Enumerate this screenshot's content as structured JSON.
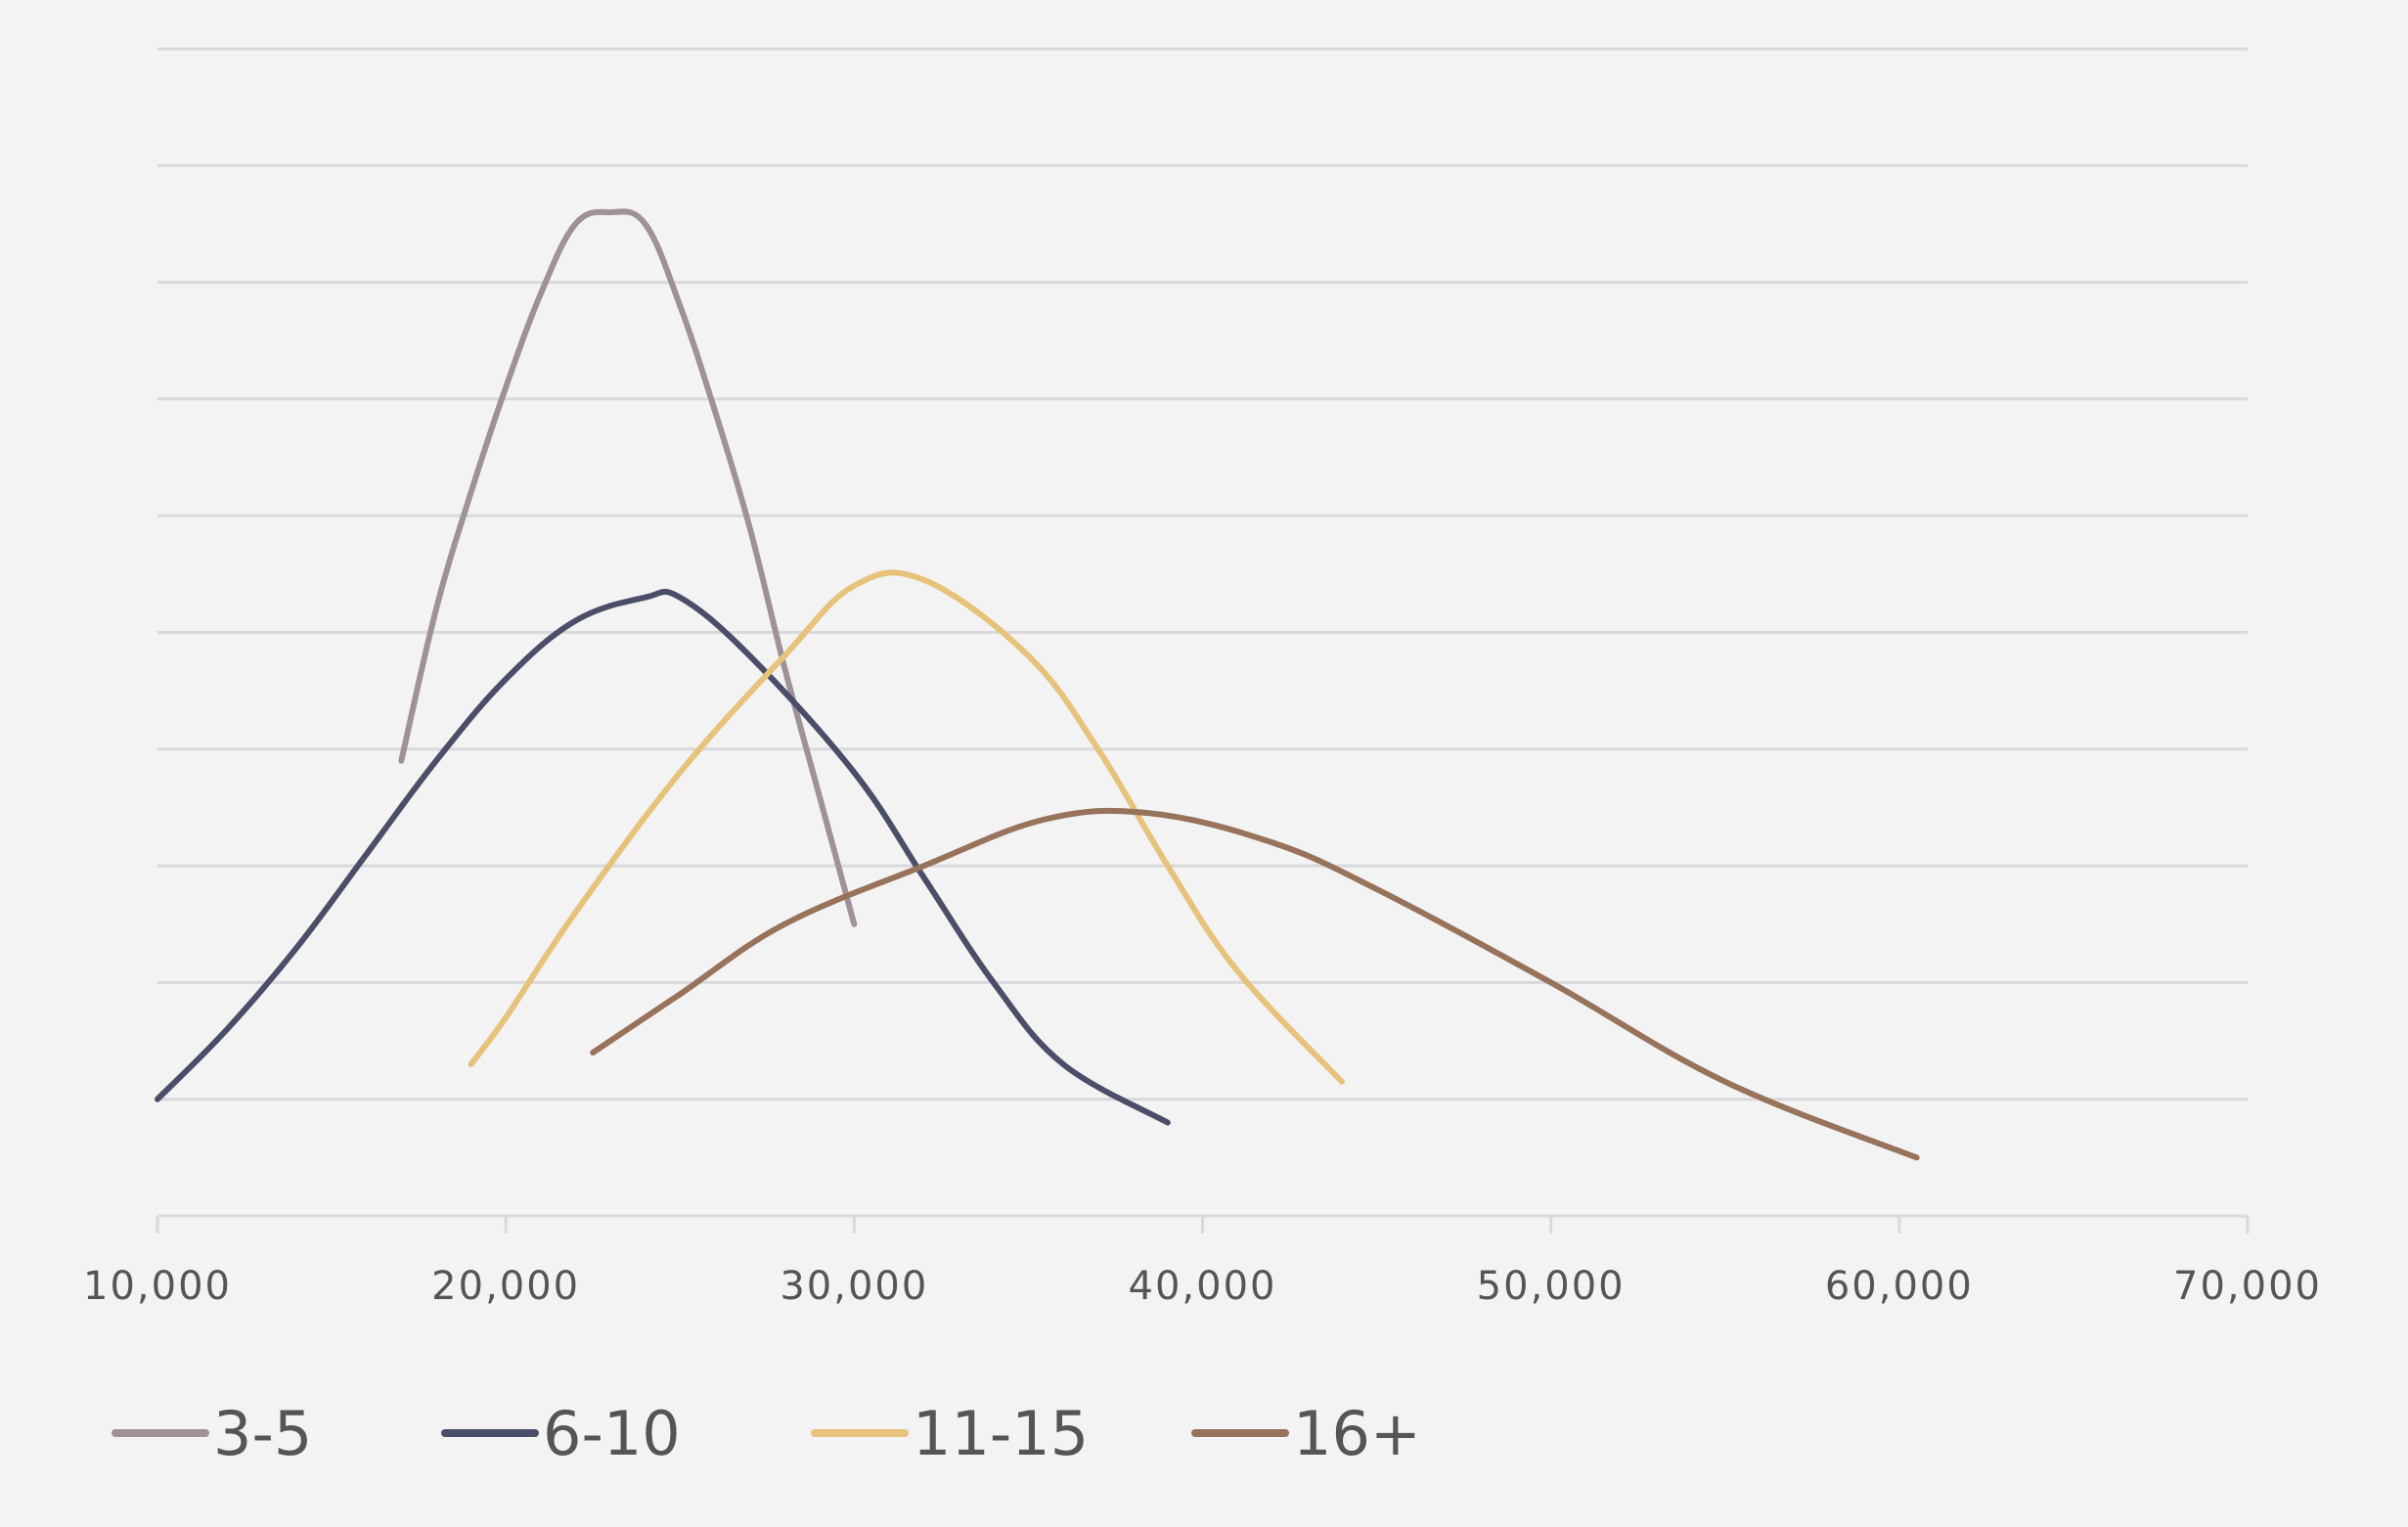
{
  "chart_data": {
    "type": "line",
    "title": "",
    "xlabel": "",
    "ylabel": "",
    "xlim": [
      10000,
      70000
    ],
    "ylim": [
      0,
      10
    ],
    "x_ticks": [
      10000,
      20000,
      30000,
      40000,
      50000,
      60000,
      70000
    ],
    "x_tick_labels": [
      "10,000",
      "20,000",
      "30,000",
      "40,000",
      "50,000",
      "60,000",
      "70,000"
    ],
    "y_gridlines": [
      1,
      2,
      3,
      4,
      5,
      6,
      7,
      8,
      9,
      10
    ],
    "y_tick_labels_shown": false,
    "grid": true,
    "legend_position": "bottom-left",
    "series": [
      {
        "name": "3-5",
        "color": "#9e9199",
        "points": [
          [
            17000,
            3.9
          ],
          [
            18000,
            5.2
          ],
          [
            19000,
            6.2
          ],
          [
            20000,
            7.1
          ],
          [
            21000,
            7.9
          ],
          [
            22000,
            8.5
          ],
          [
            23000,
            8.6
          ],
          [
            24000,
            8.5
          ],
          [
            25000,
            7.8
          ],
          [
            26000,
            6.9
          ],
          [
            27000,
            5.9
          ],
          [
            28000,
            4.7
          ],
          [
            29000,
            3.6
          ],
          [
            30000,
            2.5
          ]
        ]
      },
      {
        "name": "6-10",
        "color": "#4a4e69",
        "points": [
          [
            10000,
            1.0
          ],
          [
            12000,
            1.6
          ],
          [
            14000,
            2.3
          ],
          [
            16000,
            3.1
          ],
          [
            18000,
            3.9
          ],
          [
            20000,
            4.6
          ],
          [
            22000,
            5.1
          ],
          [
            24000,
            5.3
          ],
          [
            25000,
            5.3
          ],
          [
            27000,
            4.8
          ],
          [
            30000,
            3.8
          ],
          [
            32000,
            2.9
          ],
          [
            34000,
            2.0
          ],
          [
            36000,
            1.3
          ],
          [
            39000,
            0.8
          ]
        ]
      },
      {
        "name": "11-15",
        "color": "#e6c27a",
        "points": [
          [
            19000,
            1.3
          ],
          [
            20000,
            1.7
          ],
          [
            22000,
            2.6
          ],
          [
            25000,
            3.8
          ],
          [
            28000,
            4.8
          ],
          [
            30000,
            5.4
          ],
          [
            32000,
            5.45
          ],
          [
            35000,
            4.8
          ],
          [
            37000,
            4.0
          ],
          [
            39000,
            3.0
          ],
          [
            41000,
            2.1
          ],
          [
            44000,
            1.15
          ]
        ]
      },
      {
        "name": "16+",
        "color": "#98735c",
        "points": [
          [
            22500,
            1.4
          ],
          [
            25000,
            1.9
          ],
          [
            28000,
            2.5
          ],
          [
            32000,
            3.0
          ],
          [
            35500,
            3.4
          ],
          [
            38500,
            3.45
          ],
          [
            42000,
            3.2
          ],
          [
            45000,
            2.8
          ],
          [
            50000,
            2.0
          ],
          [
            55000,
            1.15
          ],
          [
            60500,
            0.5
          ]
        ]
      }
    ]
  }
}
